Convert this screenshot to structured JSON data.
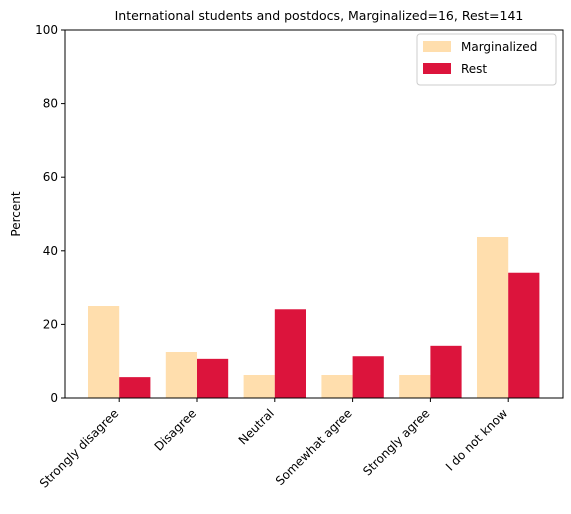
{
  "chart_data": {
    "type": "bar",
    "title": "International students and postdocs, Marginalized=16, Rest=141",
    "xlabel": "",
    "ylabel": "Percent",
    "ylim": [
      0,
      100
    ],
    "yticks": [
      0,
      20,
      40,
      60,
      80,
      100
    ],
    "categories": [
      "Strongly disagree",
      "Disagree",
      "Neutral",
      "Somewhat agree",
      "Strongly agree",
      "I do not know"
    ],
    "series": [
      {
        "name": "Marginalized",
        "color": "#ffdead",
        "values": [
          25.0,
          12.5,
          6.25,
          6.25,
          6.25,
          43.75
        ]
      },
      {
        "name": "Rest",
        "color": "#dc143c",
        "values": [
          5.67,
          10.64,
          24.11,
          11.35,
          14.18,
          34.04
        ]
      }
    ],
    "legend_position": "top-right",
    "grid": false
  }
}
